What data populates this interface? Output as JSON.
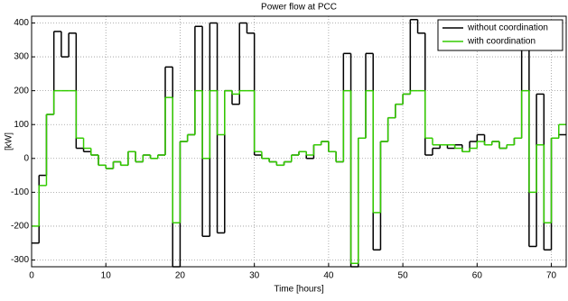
{
  "chart_data": {
    "type": "step-line",
    "title": "Power flow at PCC",
    "x_label": "Time [hours]",
    "y_label": "[kW]",
    "x": [
      0,
      1,
      2,
      3,
      4,
      5,
      6,
      7,
      8,
      9,
      10,
      11,
      12,
      13,
      14,
      15,
      16,
      17,
      18,
      19,
      20,
      21,
      22,
      23,
      24,
      25,
      26,
      27,
      28,
      29,
      30,
      31,
      32,
      33,
      34,
      35,
      36,
      37,
      38,
      39,
      40,
      41,
      42,
      43,
      44,
      45,
      46,
      47,
      48,
      49,
      50,
      51,
      52,
      53,
      54,
      55,
      56,
      57,
      58,
      59,
      60,
      61,
      62,
      63,
      64,
      65,
      66,
      67,
      68,
      69,
      70,
      71
    ],
    "series": [
      {
        "name": "without coordination",
        "color": "#000000",
        "values": [
          -250,
          -50,
          130,
          375,
          300,
          370,
          30,
          20,
          10,
          -20,
          -30,
          -10,
          -20,
          20,
          -10,
          10,
          0,
          10,
          270,
          -320,
          50,
          70,
          390,
          -230,
          400,
          -220,
          200,
          160,
          400,
          370,
          10,
          0,
          -10,
          -20,
          -10,
          10,
          20,
          0,
          40,
          50,
          20,
          -10,
          310,
          -320,
          60,
          310,
          -270,
          50,
          120,
          160,
          190,
          410,
          370,
          10,
          30,
          40,
          30,
          40,
          20,
          50,
          70,
          40,
          50,
          30,
          40,
          60,
          320,
          -260,
          190,
          -270,
          60,
          70
        ]
      },
      {
        "name": "with coordination",
        "color": "#33cc00",
        "values": [
          -200,
          -80,
          130,
          200,
          200,
          200,
          60,
          30,
          10,
          -20,
          -30,
          -10,
          -20,
          20,
          -10,
          10,
          0,
          10,
          180,
          -190,
          50,
          70,
          200,
          0,
          200,
          70,
          200,
          190,
          200,
          200,
          20,
          0,
          -10,
          -20,
          -10,
          10,
          20,
          10,
          40,
          50,
          20,
          -10,
          200,
          -310,
          60,
          200,
          -160,
          50,
          120,
          160,
          190,
          200,
          200,
          60,
          40,
          40,
          40,
          30,
          20,
          30,
          50,
          40,
          50,
          30,
          40,
          60,
          200,
          -100,
          40,
          -190,
          60,
          100
        ]
      }
    ],
    "xlim": [
      0,
      72
    ],
    "xticks": [
      0,
      10,
      20,
      30,
      40,
      50,
      60,
      70
    ],
    "ylim": [
      -320,
      420
    ],
    "yticks": [
      -300,
      -200,
      -100,
      0,
      100,
      200,
      300,
      400
    ],
    "grid": true,
    "legend": "top-right"
  }
}
